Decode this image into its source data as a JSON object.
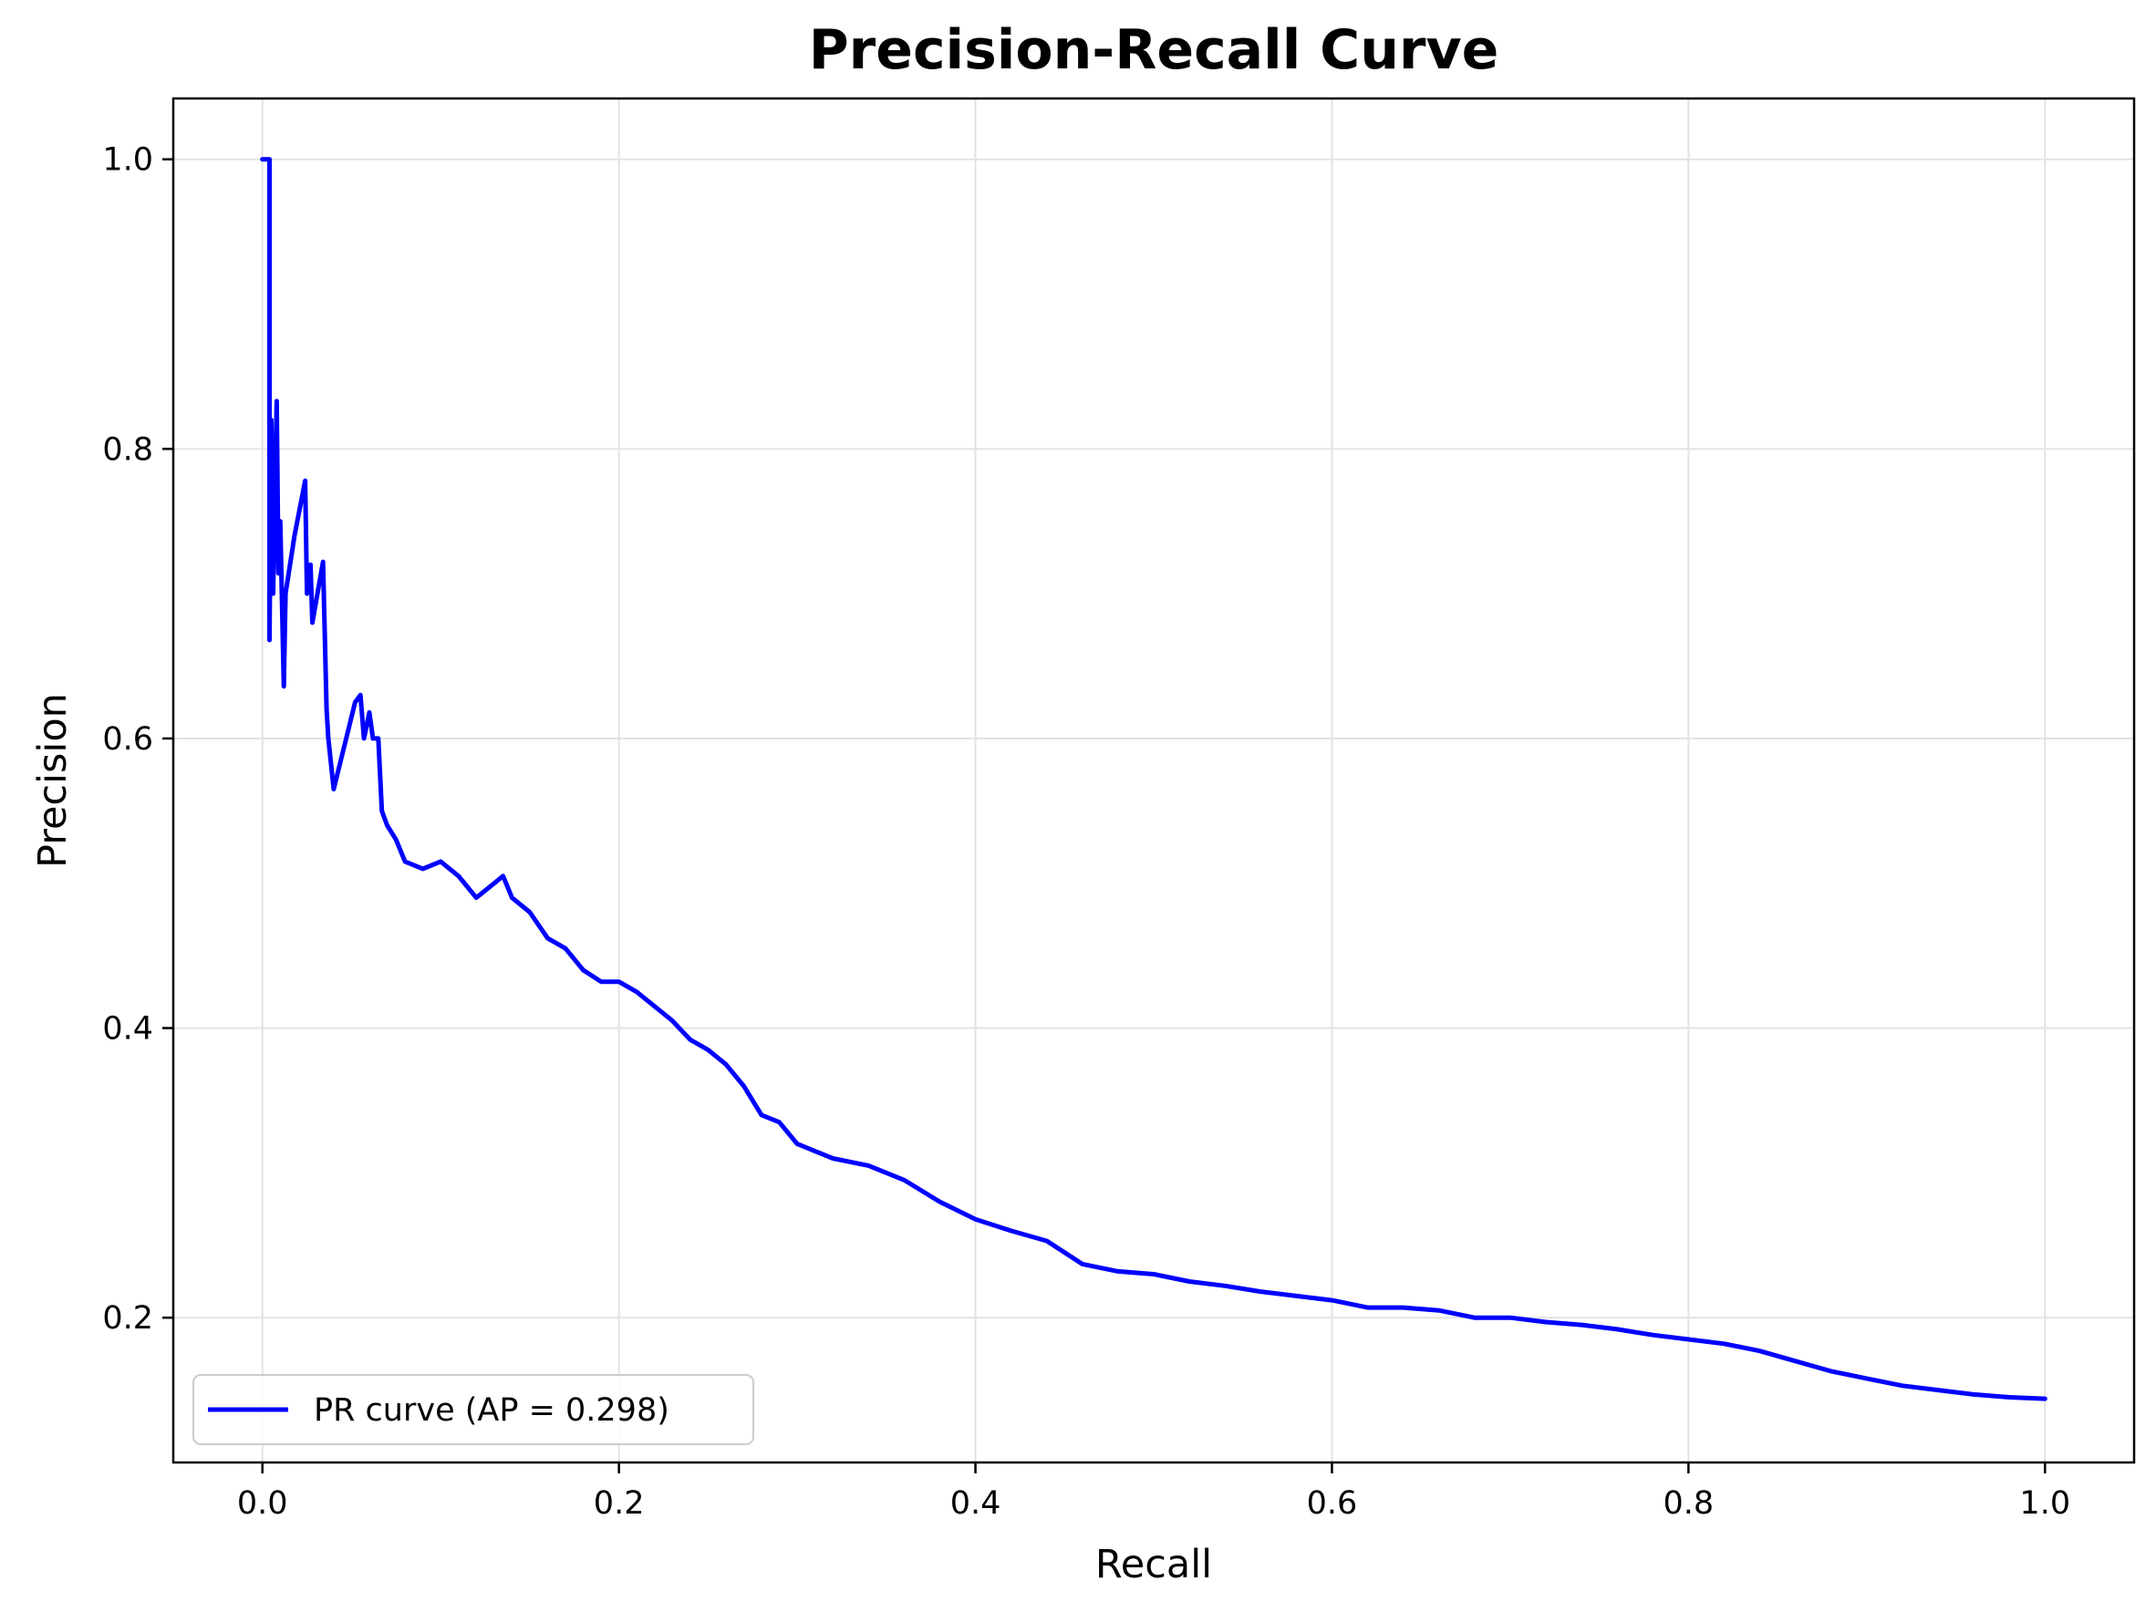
{
  "chart_data": {
    "type": "line",
    "title": "Precision-Recall Curve",
    "xlabel": "Recall",
    "ylabel": "Precision",
    "xlim": [
      -0.05,
      1.05
    ],
    "ylim": [
      0.1,
      1.042
    ],
    "xticks": [
      0.0,
      0.2,
      0.4,
      0.6,
      0.8,
      1.0
    ],
    "xtick_labels": [
      "0.0",
      "0.2",
      "0.4",
      "0.6",
      "0.8",
      "1.0"
    ],
    "yticks": [
      0.2,
      0.4,
      0.6,
      0.8,
      1.0
    ],
    "ytick_labels": [
      "0.2",
      "0.4",
      "0.6",
      "0.8",
      "1.0"
    ],
    "grid": true,
    "legend_position": "lower-left",
    "series": [
      {
        "name": "PR curve (AP = 0.298)",
        "color": "#0000ff",
        "x": [
          0.0,
          0.004,
          0.004,
          0.005,
          0.006,
          0.008,
          0.009,
          0.01,
          0.012,
          0.013,
          0.018,
          0.024,
          0.025,
          0.027,
          0.028,
          0.034,
          0.036,
          0.037,
          0.04,
          0.044,
          0.052,
          0.055,
          0.057,
          0.06,
          0.062,
          0.065,
          0.067,
          0.07,
          0.075,
          0.08,
          0.09,
          0.1,
          0.11,
          0.12,
          0.13,
          0.135,
          0.14,
          0.15,
          0.16,
          0.17,
          0.18,
          0.19,
          0.2,
          0.21,
          0.22,
          0.23,
          0.24,
          0.25,
          0.26,
          0.27,
          0.28,
          0.29,
          0.3,
          0.32,
          0.34,
          0.36,
          0.38,
          0.4,
          0.42,
          0.44,
          0.46,
          0.48,
          0.5,
          0.52,
          0.54,
          0.56,
          0.58,
          0.6,
          0.62,
          0.64,
          0.66,
          0.68,
          0.7,
          0.72,
          0.74,
          0.76,
          0.78,
          0.8,
          0.82,
          0.84,
          0.86,
          0.88,
          0.9,
          0.92,
          0.94,
          0.96,
          0.98,
          1.0
        ],
        "y": [
          1.0,
          1.0,
          0.668,
          0.82,
          0.7,
          0.833,
          0.714,
          0.75,
          0.636,
          0.7,
          0.74,
          0.778,
          0.7,
          0.72,
          0.68,
          0.722,
          0.62,
          0.6,
          0.565,
          0.585,
          0.625,
          0.63,
          0.6,
          0.618,
          0.6,
          0.6,
          0.55,
          0.54,
          0.53,
          0.515,
          0.51,
          0.515,
          0.505,
          0.49,
          0.5,
          0.505,
          0.49,
          0.48,
          0.462,
          0.455,
          0.44,
          0.432,
          0.432,
          0.425,
          0.415,
          0.405,
          0.392,
          0.385,
          0.375,
          0.36,
          0.34,
          0.335,
          0.32,
          0.31,
          0.305,
          0.295,
          0.28,
          0.268,
          0.26,
          0.253,
          0.237,
          0.232,
          0.23,
          0.225,
          0.222,
          0.218,
          0.215,
          0.212,
          0.207,
          0.207,
          0.205,
          0.2,
          0.2,
          0.197,
          0.195,
          0.192,
          0.188,
          0.185,
          0.182,
          0.177,
          0.17,
          0.163,
          0.158,
          0.153,
          0.15,
          0.147,
          0.145,
          0.144
        ]
      }
    ]
  }
}
